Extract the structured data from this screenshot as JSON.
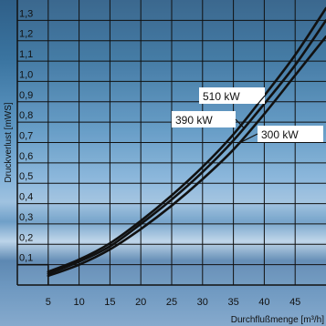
{
  "chart_data": {
    "type": "line",
    "xlabel": "Durchflußmenge [m³/h]",
    "ylabel": "Druckverlust [mWS]",
    "xlim": [
      0,
      50
    ],
    "ylim": [
      0,
      1.4
    ],
    "x_ticks": [
      5,
      10,
      15,
      20,
      25,
      30,
      35,
      40,
      45
    ],
    "y_ticks": [
      0.1,
      0.2,
      0.3,
      0.4,
      0.5,
      0.6,
      0.7,
      0.8,
      0.9,
      1.0,
      1.1,
      1.2,
      1.3
    ],
    "x_tick_labels": [
      "5",
      "10",
      "15",
      "20",
      "25",
      "30",
      "35",
      "40",
      "45"
    ],
    "y_tick_labels": [
      "0,1",
      "0,2",
      "0,3",
      "0,4",
      "0,5",
      "0,6",
      "0,7",
      "0,8",
      "0,9",
      "1,0",
      "1,1",
      "1,2",
      "1,3"
    ],
    "grid": true,
    "min_line": {
      "x": [
        0,
        5
      ],
      "y": [
        0.1,
        0.1
      ]
    },
    "series": [
      {
        "name": "510 kW",
        "x": [
          5,
          10,
          15,
          20,
          25,
          30,
          35,
          40,
          45,
          50
        ],
        "y": [
          0.065,
          0.125,
          0.205,
          0.315,
          0.44,
          0.58,
          0.74,
          0.93,
          1.13,
          1.36
        ]
      },
      {
        "name": "390 kW",
        "x": [
          5,
          10,
          15,
          20,
          25,
          30,
          35,
          40,
          45,
          50
        ],
        "y": [
          0.055,
          0.115,
          0.19,
          0.3,
          0.42,
          0.555,
          0.71,
          0.89,
          1.08,
          1.3
        ]
      },
      {
        "name": "300 kW",
        "x": [
          5,
          10,
          15,
          20,
          25,
          30,
          35,
          40,
          45,
          50
        ],
        "y": [
          0.045,
          0.1,
          0.175,
          0.275,
          0.39,
          0.52,
          0.665,
          0.84,
          1.03,
          1.22
        ]
      }
    ],
    "annotations": [
      {
        "text": "510 kW",
        "series": 0,
        "at_x": 38.5
      },
      {
        "text": "390 kW",
        "series": 1,
        "at_x": 36.7
      },
      {
        "text": "300 kW",
        "series": 2,
        "at_x": 35.9
      }
    ]
  }
}
